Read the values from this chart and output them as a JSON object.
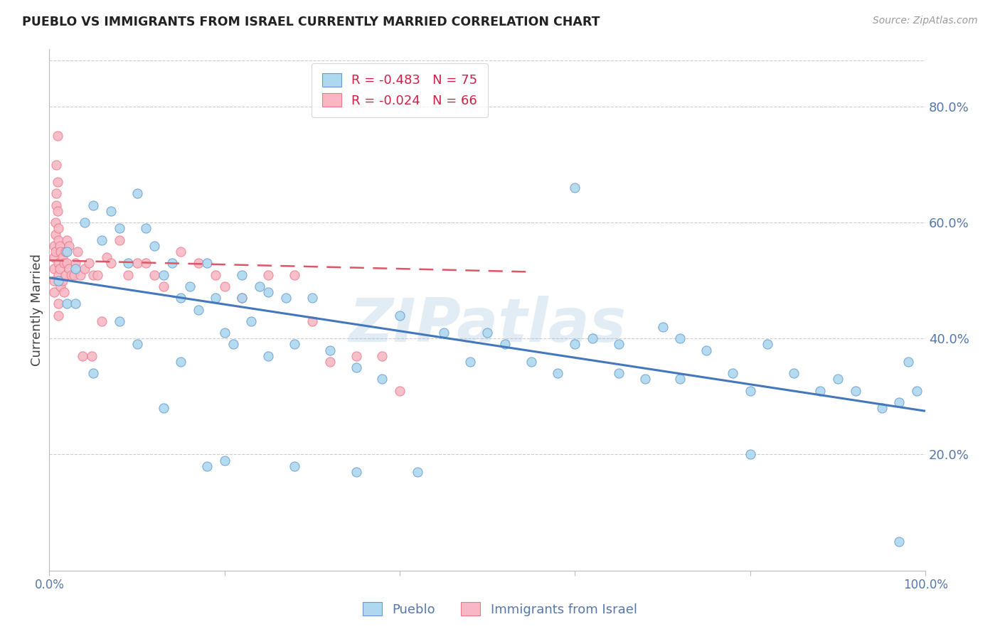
{
  "title": "PUEBLO VS IMMIGRANTS FROM ISRAEL CURRENTLY MARRIED CORRELATION CHART",
  "source": "Source: ZipAtlas.com",
  "ylabel": "Currently Married",
  "right_yticks": [
    "20.0%",
    "40.0%",
    "60.0%",
    "80.0%"
  ],
  "right_ytick_vals": [
    0.2,
    0.4,
    0.6,
    0.8
  ],
  "xmin": 0.0,
  "xmax": 1.0,
  "ymin": 0.0,
  "ymax": 0.9,
  "legend_blue_r": "R = -0.483",
  "legend_blue_n": "N = 75",
  "legend_pink_r": "R = -0.024",
  "legend_pink_n": "N = 66",
  "blue_color": "#ADD8F0",
  "pink_color": "#F7B8C4",
  "blue_edge_color": "#6699CC",
  "pink_edge_color": "#EE7788",
  "blue_line_color": "#4477BB",
  "pink_line_color": "#DD5566",
  "watermark": "ZIPatlas",
  "grid_color": "#CCCCCC",
  "bg_color": "#FFFFFF",
  "blue_x": [
    0.01,
    0.02,
    0.02,
    0.03,
    0.04,
    0.05,
    0.06,
    0.07,
    0.08,
    0.09,
    0.1,
    0.11,
    0.12,
    0.13,
    0.14,
    0.15,
    0.16,
    0.17,
    0.18,
    0.19,
    0.2,
    0.21,
    0.22,
    0.23,
    0.24,
    0.25,
    0.27,
    0.28,
    0.3,
    0.32,
    0.35,
    0.38,
    0.4,
    0.45,
    0.48,
    0.5,
    0.52,
    0.55,
    0.58,
    0.6,
    0.62,
    0.65,
    0.68,
    0.7,
    0.72,
    0.75,
    0.78,
    0.8,
    0.82,
    0.85,
    0.88,
    0.9,
    0.92,
    0.95,
    0.97,
    0.98,
    0.99,
    0.03,
    0.05,
    0.08,
    0.1,
    0.13,
    0.15,
    0.18,
    0.2,
    0.22,
    0.25,
    0.28,
    0.35,
    0.42,
    0.6,
    0.65,
    0.72,
    0.8,
    0.97
  ],
  "blue_y": [
    0.5,
    0.55,
    0.46,
    0.52,
    0.6,
    0.63,
    0.57,
    0.62,
    0.59,
    0.53,
    0.65,
    0.59,
    0.56,
    0.51,
    0.53,
    0.47,
    0.49,
    0.45,
    0.53,
    0.47,
    0.41,
    0.39,
    0.51,
    0.43,
    0.49,
    0.48,
    0.47,
    0.39,
    0.47,
    0.38,
    0.35,
    0.33,
    0.44,
    0.41,
    0.36,
    0.41,
    0.39,
    0.36,
    0.34,
    0.39,
    0.4,
    0.34,
    0.33,
    0.42,
    0.4,
    0.38,
    0.34,
    0.31,
    0.39,
    0.34,
    0.31,
    0.33,
    0.31,
    0.28,
    0.29,
    0.36,
    0.31,
    0.46,
    0.34,
    0.43,
    0.39,
    0.28,
    0.36,
    0.18,
    0.19,
    0.47,
    0.37,
    0.18,
    0.17,
    0.17,
    0.66,
    0.39,
    0.33,
    0.2,
    0.05
  ],
  "pink_x": [
    0.005,
    0.005,
    0.005,
    0.005,
    0.005,
    0.007,
    0.007,
    0.007,
    0.008,
    0.008,
    0.008,
    0.009,
    0.009,
    0.009,
    0.01,
    0.01,
    0.01,
    0.01,
    0.01,
    0.01,
    0.012,
    0.012,
    0.013,
    0.013,
    0.015,
    0.015,
    0.017,
    0.017,
    0.018,
    0.018,
    0.02,
    0.02,
    0.022,
    0.022,
    0.025,
    0.028,
    0.03,
    0.032,
    0.035,
    0.038,
    0.04,
    0.045,
    0.048,
    0.05,
    0.055,
    0.06,
    0.065,
    0.07,
    0.08,
    0.09,
    0.1,
    0.11,
    0.12,
    0.13,
    0.15,
    0.17,
    0.19,
    0.2,
    0.22,
    0.25,
    0.28,
    0.3,
    0.32,
    0.35,
    0.38,
    0.4
  ],
  "pink_y": [
    0.56,
    0.54,
    0.52,
    0.5,
    0.48,
    0.6,
    0.58,
    0.55,
    0.63,
    0.65,
    0.7,
    0.62,
    0.67,
    0.75,
    0.57,
    0.59,
    0.53,
    0.51,
    0.46,
    0.44,
    0.56,
    0.52,
    0.55,
    0.49,
    0.54,
    0.5,
    0.53,
    0.48,
    0.55,
    0.51,
    0.57,
    0.53,
    0.56,
    0.52,
    0.51,
    0.51,
    0.53,
    0.55,
    0.51,
    0.37,
    0.52,
    0.53,
    0.37,
    0.51,
    0.51,
    0.43,
    0.54,
    0.53,
    0.57,
    0.51,
    0.53,
    0.53,
    0.51,
    0.49,
    0.55,
    0.53,
    0.51,
    0.49,
    0.47,
    0.51,
    0.51,
    0.43,
    0.36,
    0.37,
    0.37,
    0.31
  ],
  "blue_trend_x": [
    0.0,
    1.0
  ],
  "blue_trend_y": [
    0.505,
    0.275
  ],
  "pink_trend_x": [
    0.0,
    0.55
  ],
  "pink_trend_y": [
    0.535,
    0.515
  ]
}
